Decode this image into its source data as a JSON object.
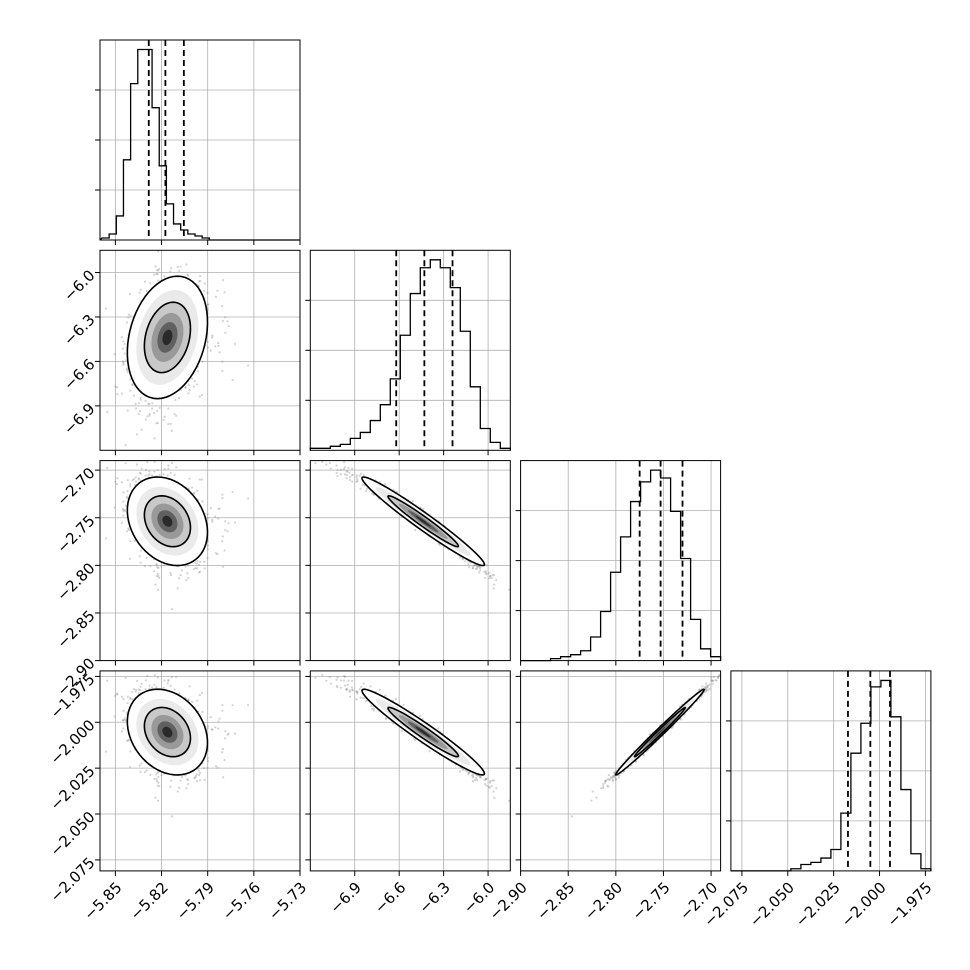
{
  "chart_data": {
    "type": "corner",
    "grid": true,
    "parameters": [
      {
        "range": [
          -5.86,
          -5.73
        ],
        "ticks": [
          -5.85,
          -5.82,
          -5.79,
          -5.76,
          -5.73
        ],
        "tick_labels": [
          "−5.85",
          "−5.82",
          "−5.79",
          "−5.76",
          "−5.73"
        ],
        "quantiles": [
          -5.8283,
          -5.8175,
          -5.8055
        ],
        "hist_edges_start": -5.8587,
        "hist_bin_width": 0.00465,
        "hist_counts": [
          1,
          3,
          12,
          40,
          78,
          95,
          95,
          66,
          37,
          18,
          8,
          5,
          3,
          2,
          1,
          0,
          0,
          0,
          0,
          0
        ]
      },
      {
        "range": [
          -7.2,
          -5.85
        ],
        "ticks": [
          -6.9,
          -6.6,
          -6.3,
          -6.0
        ],
        "tick_labels": [
          "−6.9",
          "−6.6",
          "−6.3",
          "−6.0"
        ],
        "quantiles": [
          -6.62,
          -6.43,
          -6.24
        ],
        "hist_edges_start": -7.2,
        "hist_bin_width": 0.0675,
        "hist_counts": [
          1,
          1,
          2,
          3,
          6,
          9,
          15,
          23,
          36,
          58,
          79,
          92,
          96,
          92,
          82,
          60,
          32,
          11,
          4,
          1
        ]
      },
      {
        "range": [
          -2.9,
          -2.69
        ],
        "ticks": [
          -2.9,
          -2.85,
          -2.8,
          -2.75,
          -2.7
        ],
        "tick_labels": [
          "−2.90",
          "−2.85",
          "−2.80",
          "−2.75",
          "−2.70"
        ],
        "quantiles": [
          -2.775,
          -2.753,
          -2.73
        ],
        "hist_edges_start": -2.9,
        "hist_bin_width": 0.0105,
        "hist_counts": [
          0,
          0,
          0,
          1,
          2,
          3,
          5,
          12,
          25,
          45,
          63,
          81,
          91,
          97,
          93,
          76,
          52,
          21,
          6,
          2
        ]
      },
      {
        "range": [
          -2.081,
          -1.972
        ],
        "ticks": [
          -2.075,
          -2.05,
          -2.025,
          -2.0,
          -1.975
        ],
        "tick_labels": [
          "−2.075",
          "−2.050",
          "−2.025",
          "−2.000",
          "−1.975"
        ],
        "quantiles": [
          -2.0172,
          -2.005,
          -1.9943
        ],
        "hist_edges_start": -2.081,
        "hist_bin_width": 0.00545,
        "hist_counts": [
          0,
          0,
          0,
          0,
          0,
          0,
          1,
          3,
          4,
          6,
          10,
          27,
          55,
          69,
          86,
          89,
          72,
          38,
          8,
          1
        ]
      }
    ]
  }
}
